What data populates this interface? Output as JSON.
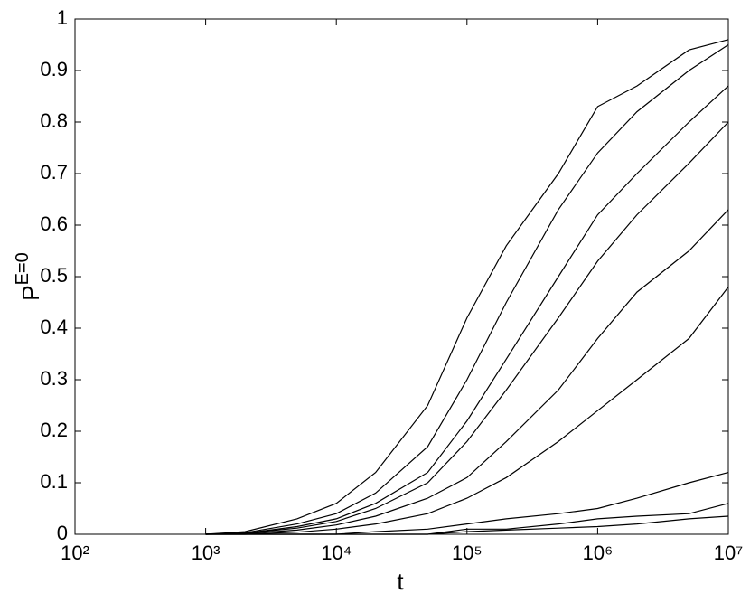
{
  "chart_data": {
    "type": "line",
    "xlabel": "t",
    "ylabel": {
      "base": "P",
      "sup": "E=0"
    },
    "xscale": "log",
    "x": [
      1000,
      2000,
      5000,
      10000,
      20000,
      50000,
      100000,
      200000,
      500000,
      1000000,
      2000000,
      5000000,
      10000000
    ],
    "series": [
      {
        "color": "#000000",
        "values": [
          0,
          0.005,
          0.03,
          0.06,
          0.12,
          0.25,
          0.42,
          0.56,
          0.7,
          0.83,
          0.87,
          0.94,
          0.96
        ]
      },
      {
        "color": "#000000",
        "values": [
          0,
          0.003,
          0.02,
          0.04,
          0.08,
          0.17,
          0.3,
          0.45,
          0.63,
          0.74,
          0.82,
          0.9,
          0.95
        ]
      },
      {
        "color": "#000000",
        "values": [
          0,
          0.002,
          0.015,
          0.03,
          0.06,
          0.12,
          0.22,
          0.34,
          0.5,
          0.62,
          0.7,
          0.8,
          0.87
        ]
      },
      {
        "color": "#000000",
        "values": [
          0,
          0.002,
          0.012,
          0.025,
          0.05,
          0.1,
          0.18,
          0.28,
          0.42,
          0.53,
          0.62,
          0.72,
          0.8
        ]
      },
      {
        "color": "#000000",
        "values": [
          0,
          0.001,
          0.008,
          0.018,
          0.035,
          0.07,
          0.11,
          0.18,
          0.28,
          0.38,
          0.47,
          0.55,
          0.63
        ]
      },
      {
        "color": "#000000",
        "values": [
          0,
          0,
          0.004,
          0.01,
          0.02,
          0.04,
          0.07,
          0.11,
          0.18,
          0.24,
          0.3,
          0.38,
          0.48
        ]
      },
      {
        "color": "#000000",
        "values": [
          0,
          0,
          0,
          0,
          0.005,
          0.01,
          0.02,
          0.03,
          0.04,
          0.05,
          0.07,
          0.1,
          0.12
        ]
      },
      {
        "color": "#000000",
        "values": [
          0,
          0,
          0,
          0,
          0,
          0,
          0.01,
          0.01,
          0.02,
          0.03,
          0.035,
          0.04,
          0.06
        ]
      },
      {
        "color": "#000000",
        "values": [
          0,
          0,
          0,
          0,
          0,
          0,
          0.005,
          0.008,
          0.012,
          0.015,
          0.02,
          0.03,
          0.035
        ]
      }
    ],
    "xlim": [
      100,
      10000000
    ],
    "xticks": [
      {
        "value": 100,
        "label": "10²"
      },
      {
        "value": 1000,
        "label": "10³"
      },
      {
        "value": 10000,
        "label": "10⁴"
      },
      {
        "value": 100000,
        "label": "10⁵"
      },
      {
        "value": 1000000,
        "label": "10⁶"
      },
      {
        "value": 10000000,
        "label": "10⁷"
      }
    ],
    "ylim": [
      0,
      1
    ],
    "yticks": [
      0,
      0.1,
      0.2,
      0.3,
      0.4,
      0.5,
      0.6,
      0.7,
      0.8,
      0.9,
      1
    ],
    "grid": false
  }
}
